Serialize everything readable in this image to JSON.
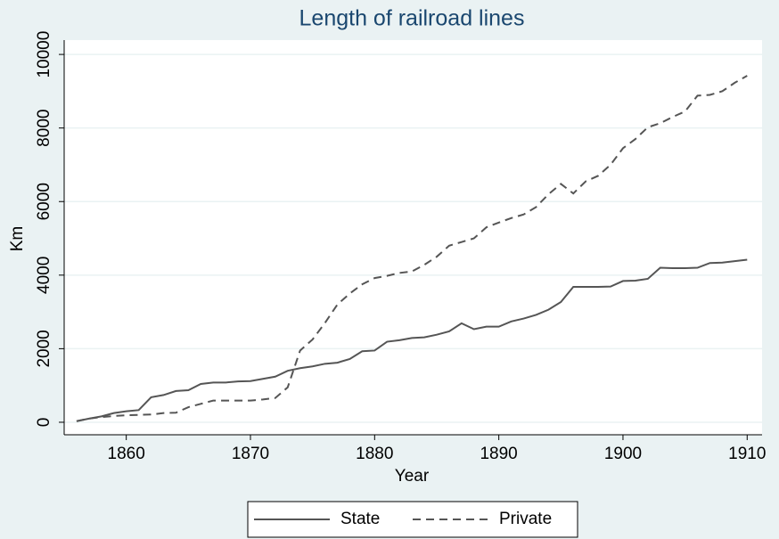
{
  "chart_data": {
    "type": "line",
    "title": "Length of railroad lines",
    "xlabel": "Year",
    "ylabel": "Km",
    "x": [
      1856,
      1857,
      1858,
      1859,
      1860,
      1861,
      1862,
      1863,
      1864,
      1865,
      1866,
      1867,
      1868,
      1869,
      1870,
      1871,
      1872,
      1873,
      1874,
      1875,
      1876,
      1877,
      1878,
      1879,
      1880,
      1881,
      1882,
      1883,
      1884,
      1885,
      1886,
      1887,
      1888,
      1889,
      1890,
      1891,
      1892,
      1893,
      1894,
      1895,
      1896,
      1897,
      1898,
      1899,
      1900,
      1901,
      1902,
      1903,
      1904,
      1905,
      1906,
      1907,
      1908,
      1909,
      1910
    ],
    "series": [
      {
        "name": "State",
        "color": "#555555",
        "dash": "solid",
        "values": [
          30,
          100,
          160,
          250,
          300,
          330,
          680,
          740,
          850,
          870,
          1040,
          1080,
          1080,
          1110,
          1120,
          1180,
          1240,
          1400,
          1470,
          1520,
          1590,
          1620,
          1720,
          1930,
          1950,
          2190,
          2230,
          2290,
          2310,
          2380,
          2470,
          2690,
          2530,
          2600,
          2600,
          2740,
          2820,
          2920,
          3060,
          3270,
          3680,
          3680,
          3680,
          3690,
          3840,
          3850,
          3900,
          4200,
          4190,
          4190,
          4200,
          4330,
          4340,
          4380,
          4420
        ]
      },
      {
        "name": "Private",
        "color": "#555555",
        "dash": "dashed",
        "values": [
          30,
          100,
          140,
          170,
          190,
          200,
          210,
          250,
          260,
          410,
          500,
          590,
          590,
          590,
          590,
          620,
          660,
          950,
          1950,
          2250,
          2700,
          3200,
          3500,
          3750,
          3920,
          3980,
          4060,
          4100,
          4280,
          4500,
          4800,
          4900,
          5000,
          5300,
          5430,
          5550,
          5650,
          5850,
          6200,
          6480,
          6220,
          6550,
          6700,
          7000,
          7450,
          7700,
          8020,
          8130,
          8300,
          8450,
          8880,
          8900,
          9000,
          9230,
          9420
        ]
      }
    ],
    "xlim": [
      1855,
      1911.2
    ],
    "xticks": [
      1860,
      1870,
      1880,
      1890,
      1900,
      1910
    ],
    "ylim": [
      -340,
      10390
    ],
    "yticks": [
      0,
      2000,
      4000,
      6000,
      8000,
      10000
    ],
    "grid": true,
    "legend": "bottom"
  }
}
